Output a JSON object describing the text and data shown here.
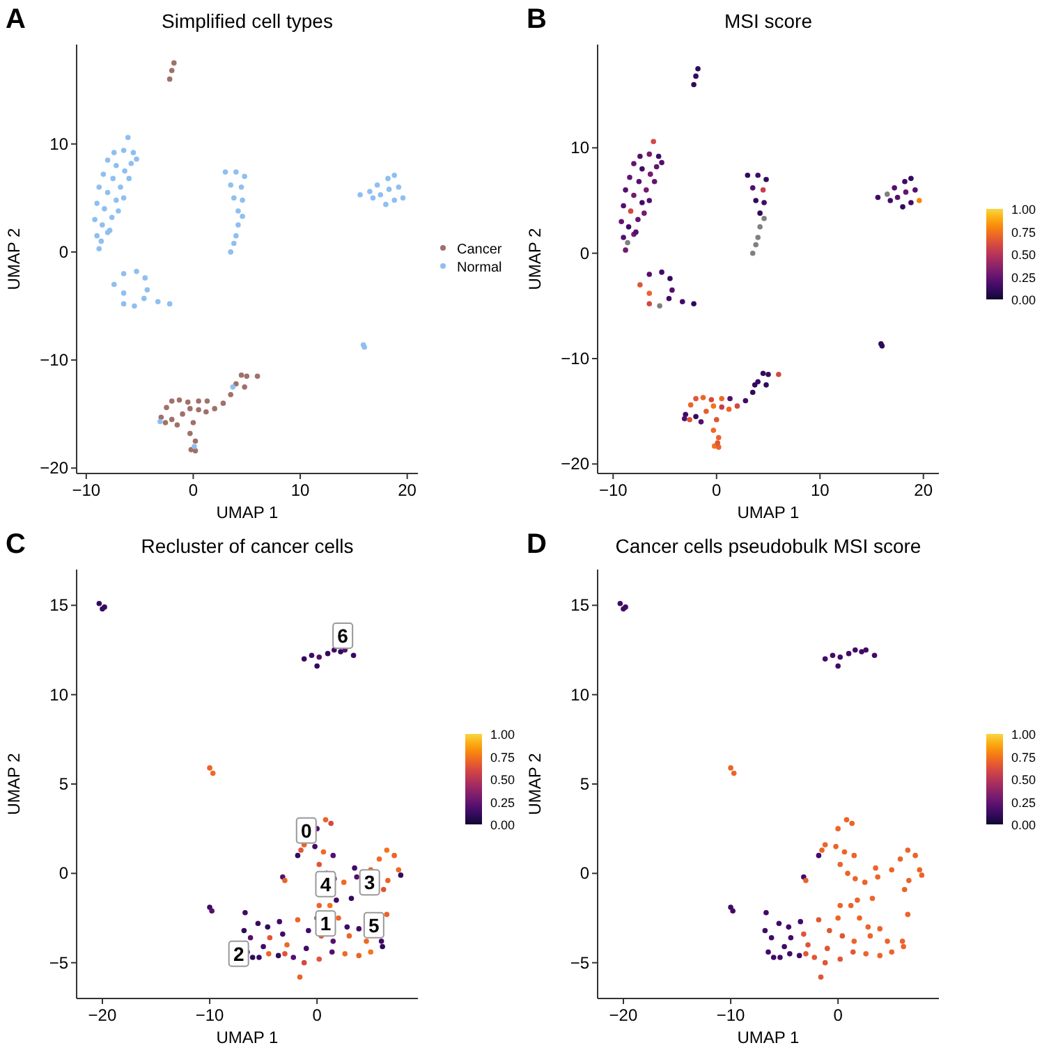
{
  "chart_data": [
    {
      "type": "scatter",
      "title": "Simplified cell types",
      "xlabel": "UMAP 1",
      "ylabel": "UMAP 2",
      "xlim": [
        -10.9,
        21
      ],
      "ylim": [
        -20.5,
        19.2
      ],
      "xticks": [
        -10,
        0,
        10,
        20
      ],
      "yticks": [
        -20,
        -10,
        0,
        10
      ],
      "legend": "right",
      "annotations": [
        "A"
      ],
      "series": [
        {
          "name": "Cancer",
          "color": "#a0706a",
          "x": [
            -2.2,
            -2,
            -1.8,
            -3,
            -2.5,
            -2,
            -1.3,
            -0.5,
            0.5,
            1.3,
            -2,
            -1,
            -0.3,
            0.5,
            1.2,
            0,
            -0.3,
            0.2,
            -0.2,
            0.2,
            2,
            2.8,
            3.5,
            4,
            4.5,
            5,
            6,
            4.8,
            -1.5,
            -2.6
          ],
          "values": [
            16,
            16.8,
            17.5,
            -15.3,
            -14.4,
            -13.8,
            -13.7,
            -13.9,
            -13.8,
            -13.8,
            -15.5,
            -15,
            -14.5,
            -14.6,
            -14.8,
            -15.8,
            -16.8,
            -17.5,
            -18.3,
            -18.4,
            -14.5,
            -14,
            -13.2,
            -12.2,
            -11.4,
            -11.5,
            -11.5,
            -12.5,
            -16,
            -15.8
          ]
        },
        {
          "name": "Normal",
          "color": "#8fbff0",
          "x": [
            -8.8,
            -9,
            -8.6,
            -9.2,
            -8.5,
            -8,
            -9,
            -8.3,
            -7.6,
            -8.8,
            -8,
            -7.2,
            -8.4,
            -7.5,
            -6.8,
            -6.5,
            -8,
            -7.2,
            -6.4,
            -5.8,
            -7.4,
            -6.5,
            -5.6,
            -6.1,
            -7.8,
            -7,
            -6,
            -5.3,
            3,
            4,
            4.8,
            3.5,
            4.5,
            3.8,
            4.6,
            4.2,
            4.6,
            4.2,
            4,
            3.8,
            3.5,
            15.6,
            16.5,
            17.2,
            18.2,
            18.8,
            19.2,
            19.6,
            18.8,
            18,
            17.5,
            16.8,
            18.3,
            -7.4,
            -6.5,
            -5.3,
            -4.5,
            -4.3,
            -4.6,
            -5.5,
            -6.5,
            -6.5,
            -3.3,
            -2.2,
            16,
            15.9,
            -3.1,
            0.1,
            3.7
          ],
          "values": [
            0.3,
            1.5,
            1,
            3,
            2.5,
            1.8,
            4.5,
            4,
            3.2,
            6,
            5.5,
            4.8,
            7.2,
            6.8,
            6,
            5,
            8.5,
            8,
            7.5,
            8.2,
            9.2,
            9.4,
            9.2,
            10.6,
            2,
            3.8,
            6.8,
            8.6,
            7.4,
            7.4,
            7,
            6.2,
            6,
            5,
            4.8,
            3.8,
            3.3,
            2.5,
            1.5,
            0.8,
            0,
            5.3,
            5.6,
            6.2,
            6.8,
            7.1,
            6,
            5,
            4.8,
            4.4,
            5.3,
            5,
            5.8,
            -3,
            -2,
            -1.8,
            -2.4,
            -3.5,
            -4.3,
            -5,
            -4.8,
            -3.8,
            -4.6,
            -4.8,
            -8.8,
            -8.6,
            -15.7,
            -18,
            -12.5
          ]
        }
      ]
    },
    {
      "type": "scatter",
      "title": "MSI score",
      "xlabel": "UMAP 1",
      "ylabel": "UMAP 2",
      "xlim": [
        -11.5,
        21.5
      ],
      "ylim": [
        -20.9,
        19.8
      ],
      "xticks": [
        -10,
        0,
        10,
        20
      ],
      "yticks": [
        -20,
        -10,
        0,
        10
      ],
      "clim": [
        0,
        1
      ],
      "cticks": [
        {
          "value": 0,
          "label": "0.00"
        },
        {
          "value": 0.25,
          "label": "0.25"
        },
        {
          "value": 0.5,
          "label": "0.50"
        },
        {
          "value": 0.75,
          "label": "0.75"
        },
        {
          "value": 1,
          "label": "1.00"
        }
      ],
      "annotations": [
        "B"
      ],
      "series": [
        {
          "x": [
            -2.2,
            -2,
            -1.8,
            -3,
            -2.5,
            -2,
            -1.3,
            -0.5,
            0.5,
            1.3,
            -2,
            -1,
            -0.3,
            0.5,
            1.2,
            0,
            -0.3,
            0.2,
            -0.2,
            0.2,
            2,
            2.8,
            3.5,
            4,
            4.5,
            5,
            6,
            4.8,
            -1.5,
            -2.6,
            -8.8,
            -9,
            -9.2,
            -8.5,
            -8,
            -9,
            -8.3,
            -7.6,
            -8.8,
            -8,
            -7.2,
            -8.4,
            -7.5,
            -6.8,
            -6.5,
            -8,
            -7.2,
            -6.4,
            -5.8,
            -7.4,
            -6.5,
            -5.6,
            -6.1,
            -7.8,
            -7,
            -6,
            -5.3,
            3,
            4,
            4.8,
            3.5,
            4.5,
            3.8,
            4.6,
            4.2,
            15.6,
            17.2,
            18.2,
            18.8,
            19.2,
            19.6,
            18.8,
            18,
            17.5,
            16.8,
            18.3,
            -7.4,
            -6.5,
            -5.3,
            -4.5,
            -4.3,
            -4.6,
            -6.5,
            -6.5,
            -3.3,
            -2.2,
            16,
            15.9,
            -3.1,
            0.1,
            3.7,
            -8.6,
            4.6,
            4.2,
            4,
            3.8,
            3.5,
            16.5,
            -5.5
          ],
          "values": [
            16,
            16.8,
            17.5,
            -15.3,
            -14.4,
            -13.8,
            -13.7,
            -13.9,
            -13.8,
            -13.8,
            -15.5,
            -15,
            -14.5,
            -14.6,
            -14.8,
            -15.8,
            -16.8,
            -17.5,
            -18.3,
            -18.4,
            -14.5,
            -14,
            -13.2,
            -12.2,
            -11.4,
            -11.5,
            -11.5,
            -12.5,
            -16,
            -15.8,
            0.3,
            1.5,
            3,
            2.5,
            1.8,
            4.5,
            4,
            3.2,
            6,
            5.5,
            4.8,
            7.2,
            6.8,
            6,
            5,
            8.5,
            8,
            7.5,
            8.2,
            9.2,
            9.4,
            9.2,
            10.6,
            2,
            3.8,
            6.8,
            8.6,
            7.4,
            7.4,
            7,
            6.2,
            6,
            5,
            4.8,
            3.8,
            5.3,
            6.2,
            6.8,
            7.1,
            6,
            5,
            4.8,
            4.4,
            5.3,
            5,
            5.8,
            -3,
            -2,
            -1.8,
            -2.4,
            -3.5,
            -4.3,
            -4.8,
            -3.8,
            -4.6,
            -4.8,
            -8.8,
            -8.6,
            -15.7,
            -18,
            -12.5,
            1,
            3.3,
            2.5,
            1.5,
            0.8,
            0,
            5.6,
            -5
          ],
          "cvalues": [
            0.1,
            0.12,
            0.1,
            0.15,
            0.7,
            0.65,
            0.7,
            0.6,
            0.72,
            0.2,
            0.1,
            0.68,
            0.75,
            0.55,
            0.7,
            0.65,
            0.72,
            0.7,
            0.75,
            0.7,
            0.6,
            0.15,
            0.1,
            0.12,
            0.1,
            0.12,
            0.6,
            0.1,
            0.2,
            0.65,
            0.3,
            0.2,
            0.25,
            0.15,
            0.3,
            0.2,
            0.6,
            0.25,
            0.2,
            0.3,
            0.15,
            0.25,
            0.2,
            0.3,
            0.2,
            0.25,
            0.15,
            0.3,
            0.25,
            0.2,
            0.3,
            0.15,
            0.6,
            0.2,
            0.3,
            0.25,
            0.2,
            0.1,
            0.15,
            0.1,
            0.2,
            0.55,
            0.1,
            0.15,
            0.1,
            0.15,
            0.2,
            0.15,
            0.1,
            0.2,
            0.8,
            0.15,
            0.1,
            0.2,
            0.15,
            0.25,
            0.65,
            0.2,
            0.15,
            0.1,
            0.2,
            0.15,
            0.6,
            0.7,
            0.15,
            0.1,
            0.1,
            0.1,
            0.2,
            0.65,
            0.1,
            null,
            null,
            null,
            null,
            null,
            null,
            null,
            null
          ]
        }
      ]
    },
    {
      "type": "scatter",
      "title": "Recluster of cancer cells",
      "xlabel": "UMAP 1",
      "ylabel": "UMAP 2",
      "xlim": [
        -22.4,
        9.4
      ],
      "ylim": [
        -7,
        17
      ],
      "xticks": [
        -20,
        -10,
        0
      ],
      "yticks": [
        -5,
        0,
        5,
        10,
        15
      ],
      "clim": [
        0,
        1
      ],
      "cticks": [
        {
          "value": 0,
          "label": "0.00"
        },
        {
          "value": 0.25,
          "label": "0.25"
        },
        {
          "value": 0.5,
          "label": "0.50"
        },
        {
          "value": 0.75,
          "label": "0.75"
        },
        {
          "value": 1,
          "label": "1.00"
        }
      ],
      "annotations": [
        "C",
        {
          "text": "6",
          "x": 2.4,
          "y": 13.3
        },
        {
          "text": "0",
          "x": -1,
          "y": 2.4
        },
        {
          "text": "4",
          "x": 0.8,
          "y": -0.6
        },
        {
          "text": "3",
          "x": 4.9,
          "y": -0.5
        },
        {
          "text": "1",
          "x": 0.8,
          "y": -2.8
        },
        {
          "text": "5",
          "x": 5.3,
          "y": -2.9
        },
        {
          "text": "2",
          "x": -7.3,
          "y": -4.5
        }
      ],
      "series": [
        {
          "x": [
            -20.3,
            -20,
            -19.8,
            -10,
            -9.7,
            -10,
            -9.8,
            -3.2,
            -3,
            -1.2,
            -0.5,
            0,
            0.2,
            1,
            1.6,
            2.2,
            2.6,
            3.4,
            -1.8,
            -1.2,
            -1.5,
            0,
            0.8,
            1.3,
            -0.2,
            0.6,
            1.5,
            0.2,
            0.9,
            1.6,
            0.2,
            1.8,
            2.5,
            3.2,
            3.5,
            3.7,
            5,
            5.8,
            6.5,
            7.2,
            7.6,
            7.8,
            6.6,
            6.2,
            1.2,
            2,
            2.8,
            0,
            -1.8,
            -0.8,
            0.4,
            1.5,
            3,
            3.9,
            4.6,
            6.5,
            6,
            6.1,
            5,
            3.9,
            2.6,
            1.4,
            0.2,
            -1,
            -1.6,
            -1.2,
            -2.2,
            -2.8,
            -3.2,
            -3,
            -6.7,
            -6.8,
            -6.2,
            -5.5,
            -4.6,
            -4.4,
            -5,
            -6,
            -6.5,
            -5.4,
            -4.5,
            -3.6,
            -3.5
          ],
          "values": [
            15.1,
            14.8,
            14.9,
            5.9,
            5.6,
            -1.9,
            -2.1,
            -0.2,
            -0.4,
            12,
            12.2,
            11.6,
            12.1,
            12.3,
            12.5,
            12.4,
            12.5,
            12.2,
            1,
            1.6,
            1.3,
            2.5,
            3,
            2.8,
            1.5,
            1.2,
            1,
            0.5,
            0,
            -0.3,
            -1.8,
            -1.5,
            -0.5,
            -1.4,
            0.3,
            -0.2,
            0.2,
            0.8,
            1.3,
            1,
            0.2,
            -0.1,
            -0.4,
            -0.9,
            -1.8,
            -2.5,
            -3,
            -2.5,
            -2.6,
            -3.2,
            -3.5,
            -3.8,
            -3.5,
            -3.1,
            -3.8,
            -2.3,
            -3.8,
            -4.1,
            -4.4,
            -4.6,
            -4.5,
            -4.4,
            -4.8,
            -4.2,
            -5.8,
            -5,
            -4.7,
            -4,
            -3.4,
            -4.5,
            -2.2,
            -3.2,
            -3.6,
            -2.8,
            -3,
            -3.6,
            -4.1,
            -4.7,
            -4.4,
            -4.7,
            -4.5,
            -4.6,
            -2.7
          ],
          "cvalues": [
            0.12,
            0.1,
            0.12,
            0.7,
            0.72,
            0.15,
            0.2,
            0.2,
            0.7,
            0.1,
            0.15,
            0.1,
            0.2,
            0.1,
            0.15,
            0.1,
            0.2,
            0.12,
            0.1,
            0.7,
            0.65,
            0.2,
            0.7,
            0.6,
            0.15,
            0.72,
            0.2,
            0.65,
            0.1,
            0.2,
            0.7,
            0.15,
            0.72,
            0.1,
            0.15,
            0.2,
            0.7,
            0.72,
            0.75,
            0.7,
            0.72,
            0.1,
            0.7,
            0.65,
            0.75,
            0.7,
            0.15,
            0.2,
            0.7,
            0.15,
            0.65,
            0.2,
            0.7,
            0.15,
            0.72,
            0.7,
            0.15,
            0.1,
            0.75,
            0.7,
            0.72,
            0.2,
            0.65,
            0.15,
            0.7,
            0.6,
            0.2,
            0.72,
            0.15,
            0.65,
            0.15,
            0.1,
            0.2,
            0.12,
            0.1,
            0.65,
            0.15,
            0.1,
            0.2,
            0.12,
            0.7,
            0.1,
            0.15
          ]
        }
      ]
    },
    {
      "type": "scatter",
      "title": "Cancer cells pseudobulk MSI score",
      "xlabel": "UMAP 1",
      "ylabel": "UMAP 2",
      "xlim": [
        -22.4,
        9.4
      ],
      "ylim": [
        -7,
        17
      ],
      "xticks": [
        -20,
        -10,
        0
      ],
      "yticks": [
        -5,
        0,
        5,
        10,
        15
      ],
      "clim": [
        0,
        1
      ],
      "cticks": [
        {
          "value": 0,
          "label": "0.00"
        },
        {
          "value": 0.25,
          "label": "0.25"
        },
        {
          "value": 0.5,
          "label": "0.50"
        },
        {
          "value": 0.75,
          "label": "0.75"
        },
        {
          "value": 1,
          "label": "1.00"
        }
      ],
      "annotations": [
        "D"
      ],
      "series": [
        {
          "x": [
            -20.3,
            -20,
            -19.8,
            -10,
            -9.7,
            -10,
            -9.8,
            -3.2,
            -3,
            -1.2,
            -0.5,
            0,
            0.2,
            1,
            1.6,
            2.2,
            2.6,
            3.4,
            -1.8,
            -1.2,
            -1.5,
            0,
            0.8,
            1.3,
            -0.2,
            0.6,
            1.5,
            0.2,
            0.9,
            1.6,
            0.2,
            1.8,
            2.5,
            3.2,
            3.5,
            3.7,
            5,
            5.8,
            6.5,
            7.2,
            7.6,
            7.8,
            6.6,
            6.2,
            1.2,
            2,
            2.8,
            0,
            -1.8,
            -0.8,
            0.4,
            1.5,
            3,
            3.9,
            4.6,
            6.5,
            6,
            6.1,
            5,
            3.9,
            2.6,
            1.4,
            0.2,
            -1,
            -1.6,
            -1.2,
            -2.2,
            -2.8,
            -3.2,
            -3,
            -6.7,
            -6.8,
            -6.2,
            -5.5,
            -4.6,
            -4.4,
            -5,
            -6,
            -6.5,
            -5.4,
            -4.5,
            -3.6,
            -3.5
          ],
          "values": [
            15.1,
            14.8,
            14.9,
            5.9,
            5.6,
            -1.9,
            -2.1,
            -0.2,
            -0.4,
            12,
            12.2,
            11.6,
            12.1,
            12.3,
            12.5,
            12.4,
            12.5,
            12.2,
            1,
            1.6,
            1.3,
            2.5,
            3,
            2.8,
            1.5,
            1.2,
            1,
            0.5,
            0,
            -0.3,
            -1.8,
            -1.5,
            -0.5,
            -1.4,
            0.3,
            -0.2,
            0.2,
            0.8,
            1.3,
            1,
            0.2,
            -0.1,
            -0.4,
            -0.9,
            -1.8,
            -2.5,
            -3,
            -2.5,
            -2.6,
            -3.2,
            -3.5,
            -3.8,
            -3.5,
            -3.1,
            -3.8,
            -2.3,
            -3.8,
            -4.1,
            -4.4,
            -4.6,
            -4.5,
            -4.4,
            -4.8,
            -4.2,
            -5.8,
            -5,
            -4.7,
            -4,
            -3.4,
            -4.5,
            -2.2,
            -3.2,
            -3.6,
            -2.8,
            -3,
            -3.6,
            -4.1,
            -4.7,
            -4.4,
            -4.7,
            -4.5,
            -4.6,
            -2.7
          ],
          "cvalues": [
            0.15,
            0.15,
            0.15,
            0.7,
            0.7,
            0.15,
            0.15,
            0.15,
            0.7,
            0.15,
            0.15,
            0.15,
            0.15,
            0.15,
            0.15,
            0.15,
            0.15,
            0.15,
            0.15,
            0.7,
            0.7,
            0.7,
            0.7,
            0.7,
            0.7,
            0.7,
            0.7,
            0.7,
            0.7,
            0.7,
            0.7,
            0.7,
            0.7,
            0.7,
            0.7,
            0.7,
            0.7,
            0.7,
            0.7,
            0.7,
            0.7,
            0.7,
            0.7,
            0.7,
            0.7,
            0.7,
            0.7,
            0.7,
            0.65,
            0.65,
            0.65,
            0.7,
            0.7,
            0.7,
            0.7,
            0.7,
            0.7,
            0.7,
            0.7,
            0.7,
            0.7,
            0.65,
            0.65,
            0.65,
            0.65,
            0.65,
            0.65,
            0.65,
            0.65,
            0.65,
            0.15,
            0.15,
            0.15,
            0.15,
            0.15,
            0.15,
            0.15,
            0.15,
            0.15,
            0.15,
            0.15,
            0.15,
            0.15
          ]
        }
      ]
    }
  ]
}
